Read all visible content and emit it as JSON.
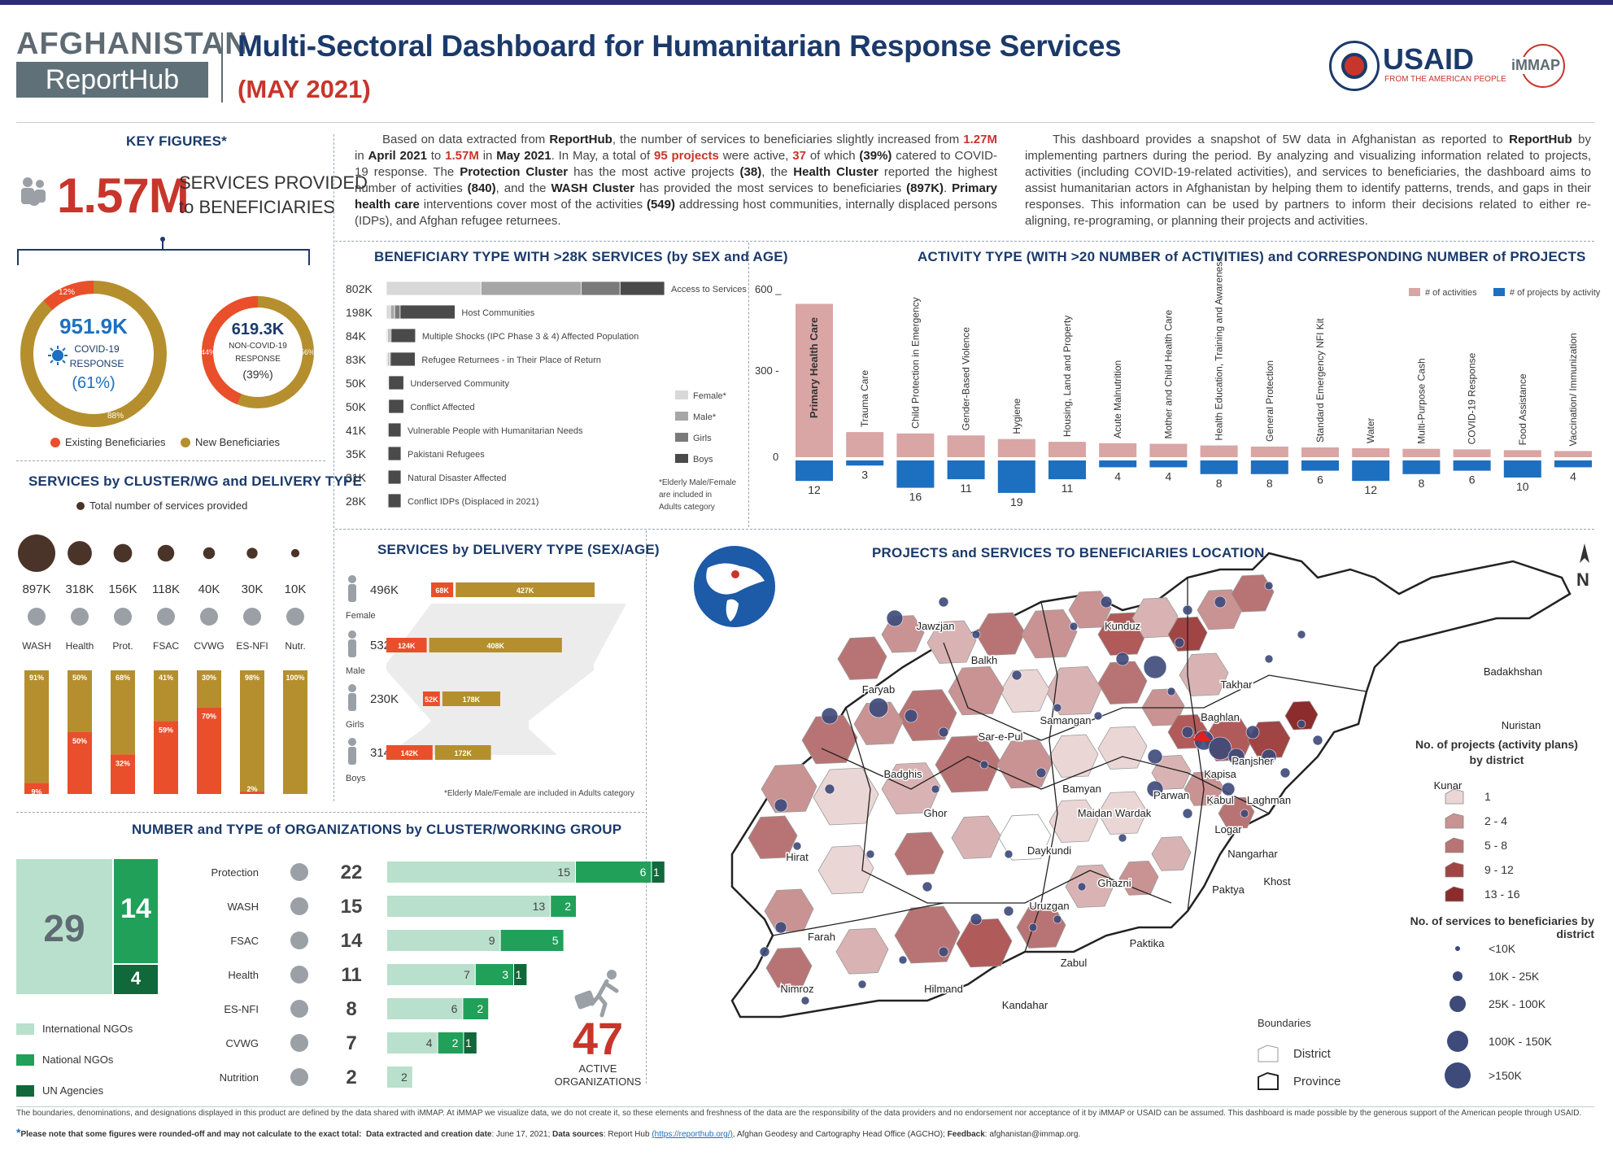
{
  "header": {
    "brand_top": "AFGHANISTAN",
    "brand_bottom": "ReportHub",
    "title": "Multi-Sectoral Dashboard for Humanitarian Response Services",
    "subtitle": "(MAY 2021)",
    "usaid_logo": "USAID",
    "usaid_tagline": "FROM THE AMERICAN PEOPLE",
    "immap_logo": "iMMAP"
  },
  "colors": {
    "navy": "#1b3a6b",
    "red": "#e94f2a",
    "gold": "#b58f2e",
    "rose": "#d9a5a5",
    "blue": "#1d6fc0",
    "green_light": "#b9e0cc",
    "green": "#21a05a",
    "green_dark": "#11683a"
  },
  "key_figures": {
    "title": "KEY FIGURES*",
    "big_value": "1.57M",
    "big_label_1": "SERVICES PROVIDED",
    "big_label_2": "to  BENEFICIARIES",
    "covid": {
      "value": "951.9K",
      "label1": "COVID-19",
      "label2": "RESPONSE",
      "pct": "(61%)",
      "existing_pct": "12%",
      "new_pct": "88%",
      "existing": 12,
      "new": 88
    },
    "noncovid": {
      "value": "619.3K",
      "label1": "NON-COVID-19",
      "label2": "RESPONSE",
      "pct": "(39%)",
      "existing_pct": "44%",
      "new_pct": "56%",
      "existing": 44,
      "new": 56
    },
    "legend_existing": "Existing Beneficiaries",
    "legend_new": "New Beneficiaries"
  },
  "intro": {
    "p1_a": "Based on data extracted from ",
    "p1_b": "ReportHub",
    "p1_c": ", the number of services to beneficiaries slightly increased from ",
    "p1_d": "1.27M",
    "p1_e": " in ",
    "p1_f": "April 2021",
    "p1_g": " to ",
    "p1_h": "1.57M",
    "p1_i": "  in ",
    "p1_j": "May 2021",
    "p1_k": ".  In May, a total of ",
    "p1_l": "95 projects",
    "p1_m": " were active, ",
    "p1_n": "37",
    "p1_o": " of which ",
    "p1_p": "(39%)",
    "p1_q": " catered to COVID-19 response. The ",
    "p1_r": "Protection Cluster",
    "p1_s": " has the most active projects ",
    "p1_t": "(38)",
    "p1_u": ", the ",
    "p1_v": "Health Cluster",
    "p1_w": " reported the highest number of activities ",
    "p1_x": "(840)",
    "p1_y": ", and the ",
    "p1_z": "WASH Cluster",
    "p1_aa": " has provided the most services to beneficiaries ",
    "p1_ab": "(897K)",
    "p1_ac": ".  ",
    "p1_ad": "Primary health care",
    "p1_ae": " interventions cover most of the activities ",
    "p1_af": "(549)",
    "p1_ag": " addressing host communities, internally displaced persons (IDPs), and Afghan refugee returnees.",
    "p2_a": "This dashboard provides a snapshot of 5W data in Afghanistan as reported to ",
    "p2_b": "ReportHub",
    "p2_c": " by implementing partners during the period. By analyzing and visualizing information related to projects, activities (including COVID-19-related activities), and services to beneficiaries, the dashboard aims to assist humanitarian actors in Afghanistan by helping them to identify patterns, trends, and gaps in their responses. This information can be used by partners to inform their decisions related to either re-aligning, re-programing, or planning their projects and activities."
  },
  "chart_data": [
    {
      "id": "beneficiary",
      "type": "bar",
      "title": "BENEFICIARY TYPE WITH >28K SERVICES (by SEX and AGE)",
      "categories": [
        "Access to Services",
        "Host Communities",
        "Multiple Shocks (IPC Phase 3 & 4) Affected Population",
        "Refugee Returnees - in Their Place of Return",
        "Underserved Community",
        "Conflict Affected",
        "Vulnerable People with Humanitarian Needs",
        "Pakistani Refugees",
        "Natural Disaster Affected",
        "Conflict IDPs (Displaced in 2021)"
      ],
      "totals": [
        "802K",
        "198K",
        "84K",
        "83K",
        "50K",
        "50K",
        "41K",
        "35K",
        "31K",
        "28K"
      ],
      "total_values": [
        802,
        198,
        84,
        83,
        50,
        50,
        41,
        35,
        31,
        28
      ],
      "series": [
        {
          "name": "Female*",
          "color": "#d8d8d8",
          "values": [
            0.34,
            0.06,
            0.05,
            0.05,
            0.05,
            0.05,
            0.05,
            0.05,
            0.05,
            0.05
          ]
        },
        {
          "name": "Male*",
          "color": "#a6a6a6",
          "values": [
            0.36,
            0.06,
            0.06,
            0.05,
            0.05,
            0.05,
            0.05,
            0.05,
            0.05,
            0.05
          ]
        },
        {
          "name": "Girls",
          "color": "#7a7a7a",
          "values": [
            0.14,
            0.08,
            0.05,
            0.04,
            0.03,
            0.03,
            0.03,
            0.02,
            0.02,
            0.02
          ]
        },
        {
          "name": "Boys",
          "color": "#4a4a4a",
          "values": [
            0.16,
            0.8,
            0.84,
            0.86,
            0.87,
            0.87,
            0.87,
            0.88,
            0.88,
            0.88
          ]
        }
      ],
      "note": "*Elderly Male/Female are included in Adults category"
    },
    {
      "id": "activity",
      "type": "bar",
      "title": "ACTIVITY TYPE (WITH >20 NUMBER of ACTIVITIES) and CORRESPONDING NUMBER of PROJECTS",
      "categories": [
        "Primary Health Care",
        "Trauma Care",
        "Child Protection in Emergency",
        "Gender-Based Violence",
        "Hygiene",
        "Housing, Land and Property",
        "Acute Malnutrition",
        "Mother and Child Health Care",
        "Health Education, Training and Awareness",
        "General Protection",
        "Standard Emergency NFI Kit",
        "Water",
        "Multi-Purpose Cash",
        "COVID-19 Response",
        "Food Assistance",
        "Vaccination/ Immunization"
      ],
      "series": [
        {
          "name": "# of activities",
          "color": "#d9a5a5",
          "values": [
            549,
            90,
            85,
            78,
            65,
            55,
            50,
            48,
            42,
            38,
            35,
            32,
            30,
            28,
            25,
            22
          ]
        },
        {
          "name": "# of projects by activity",
          "color": "#1d6fc0",
          "values": [
            12,
            3,
            16,
            11,
            19,
            11,
            4,
            4,
            8,
            8,
            6,
            12,
            8,
            6,
            10,
            4
          ]
        }
      ],
      "yticks": [
        "600 _",
        "300 -",
        "0"
      ],
      "ylim": [
        0,
        600
      ]
    },
    {
      "id": "delivery",
      "type": "bar",
      "title": "SERVICES by DELIVERY TYPE (SEX/AGE)",
      "categories": [
        "Female",
        "Male",
        "Girls",
        "Boys"
      ],
      "totals": [
        "496K",
        "532K",
        "230K",
        "314K"
      ],
      "series": [
        {
          "name": "COVID",
          "color": "#e94f2a",
          "values": [
            68,
            124,
            52,
            142
          ],
          "labels": [
            "68K",
            "124K",
            "52K",
            "142K"
          ]
        },
        {
          "name": "Non-COVID",
          "color": "#b58f2e",
          "values": [
            427,
            408,
            178,
            172
          ],
          "labels": [
            "427K",
            "408K",
            "178K",
            "172K"
          ]
        }
      ],
      "note": "*Elderly Male/Female are included in Adults category"
    },
    {
      "id": "cluster",
      "type": "bar",
      "title": "SERVICES by CLUSTER/WG and DELIVERY TYPE",
      "legend": "Total number of services provided",
      "categories": [
        "WASH",
        "Health",
        "Prot.",
        "FSAC",
        "CVWG",
        "ES-NFI",
        "Nutr."
      ],
      "totals": [
        "897K",
        "318K",
        "156K",
        "118K",
        "40K",
        "30K",
        "10K"
      ],
      "total_values": [
        897,
        318,
        156,
        118,
        40,
        30,
        10
      ],
      "series": [
        {
          "name": "Non-COVID",
          "color": "#b58f2e",
          "values": [
            91,
            50,
            68,
            41,
            30,
            98,
            100
          ],
          "labels": [
            "91%",
            "50%",
            "68%",
            "41%",
            "30%",
            "98%",
            "100%"
          ]
        },
        {
          "name": "COVID",
          "color": "#e94f2a",
          "values": [
            9,
            50,
            32,
            59,
            70,
            2,
            0
          ],
          "labels": [
            "9%",
            "50%",
            "32%",
            "59%",
            "70%",
            "2%",
            ""
          ]
        }
      ]
    },
    {
      "id": "orgs",
      "type": "bar",
      "title": "NUMBER and TYPE of ORGANIZATIONS by CLUSTER/WORKING GROUP",
      "categories": [
        "Protection",
        "WASH",
        "FSAC",
        "Health",
        "ES-NFI",
        "CVWG",
        "Nutrition"
      ],
      "totals": [
        "22",
        "15",
        "14",
        "11",
        "8",
        "7",
        "2"
      ],
      "series": [
        {
          "name": "International NGOs",
          "color": "#b9e0cc",
          "values": [
            15,
            13,
            9,
            7,
            6,
            4,
            2
          ]
        },
        {
          "name": "National NGOs",
          "color": "#21a05a",
          "values": [
            6,
            2,
            5,
            3,
            2,
            2,
            0
          ]
        },
        {
          "name": "UN Agencies",
          "color": "#11683a",
          "values": [
            1,
            0,
            0,
            1,
            0,
            1,
            0
          ]
        }
      ],
      "summary": {
        "intl": "29",
        "national": "14",
        "un": "4",
        "total": "47",
        "total_label_1": "ACTIVE",
        "total_label_2": "ORGANIZATIONS"
      }
    }
  ],
  "map": {
    "title": "PROJECTS and SERVICES TO BENEFICIARIES LOCATION",
    "north": "N",
    "places": [
      "Jawzjan",
      "Kunduz",
      "Balkh",
      "Badakhshan",
      "Faryab",
      "Takhar",
      "Samangan",
      "Sar-e-Pul",
      "Baghlan",
      "Nuristan",
      "Badghis",
      "Panjsher",
      "Kapisa",
      "Kunar",
      "Bamyan",
      "Parwan",
      "Laghman",
      "Kabul",
      "Maidan Wardak",
      "Hirat",
      "Ghor",
      "Logar",
      "Nangarhar",
      "Daykundi",
      "Ghazni",
      "Khost",
      "Paktya",
      "Uruzgan",
      "Farah",
      "Paktika",
      "Zabul",
      "Nimroz",
      "Hilmand",
      "Kandahar"
    ],
    "legend_projects_title": "No. of projects (activity plans) by district",
    "legend_projects": [
      "1",
      "2 - 4",
      "5 - 8",
      "9 - 12",
      "13 - 16"
    ],
    "legend_services_title": "No. of services to beneficiaries by district",
    "legend_services": [
      "<10K",
      "10K - 25K",
      "25K - 100K",
      "100K - 150K",
      ">150K"
    ],
    "boundaries_title": "Boundaries",
    "boundary_district": "District",
    "boundary_province": "Province"
  },
  "footer": {
    "disclaimer": "The boundaries, denominations, and designations displayed in this product are defined by the data shared with iMMAP. At iMMAP we visualize data, we do not create it, so these elements and freshness of the data are the responsibility of the data providers and no endorsement nor acceptance of it by iMMAP or USAID can be assumed. This dashboard is made possible by the generous support of the American people through USAID.",
    "note_bold": "Please note that some figures were rounded-off and may not calculate to the exact total:",
    "extracted_label": "Data extracted and creation date",
    "extracted_value": ": June 17, 2021;",
    "sources_label": "Data sources",
    "sources_value": ": Report Hub",
    "sources_link": "(https://reporthub.org/)",
    "sources_rest": ", Afghan Geodesy and Cartography Head Office (AGCHO);",
    "feedback_label": "Feedback",
    "feedback_value": ": afghanistan@immap.org."
  }
}
